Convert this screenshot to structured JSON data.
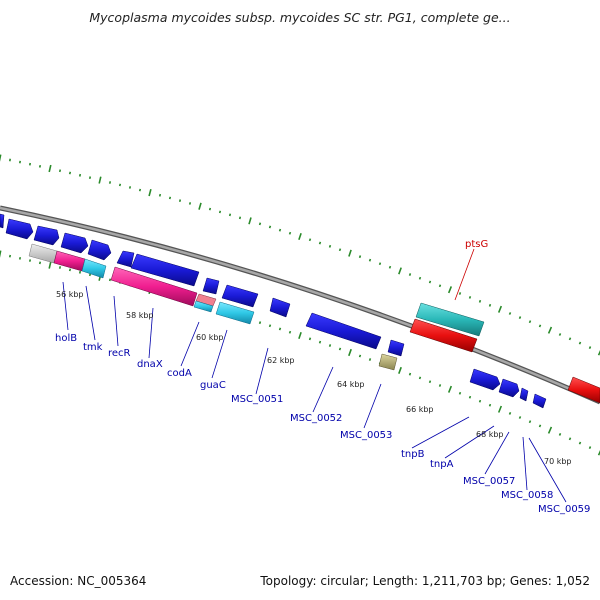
{
  "title": "Mycoplasma mycoides subsp. mycoides SC str. PG1, complete ge...",
  "footer": {
    "accession": "Accession: NC_005364",
    "summary": "Topology: circular; Length: 1,211,703 bp; Genes: 1,052"
  },
  "kbp_labels": [
    "56 kbp",
    "58 kbp",
    "60 kbp",
    "62 kbp",
    "64 kbp",
    "66 kbp",
    "68 kbp",
    "70 kbp"
  ],
  "genes": [
    "holB",
    "tmk",
    "recR",
    "dnaX",
    "codA",
    "guaC",
    "MSC_0051",
    "MSC_0052",
    "MSC_0053",
    "tnpB",
    "tnpA",
    "MSC_0057",
    "MSC_0058",
    "MSC_0059",
    "ptsG"
  ],
  "colors": {
    "cds_forward": "#1a1ad6",
    "cds_reverse": "#1a1ad6",
    "trna": "#f01e90",
    "cyan": "#2fc8e6",
    "teal": "#2ab8b8",
    "red": "#e81010",
    "gray": "#c8c8c8",
    "olive": "#b8b070",
    "backbone": "#888888",
    "tick": "#2a8a2a"
  }
}
